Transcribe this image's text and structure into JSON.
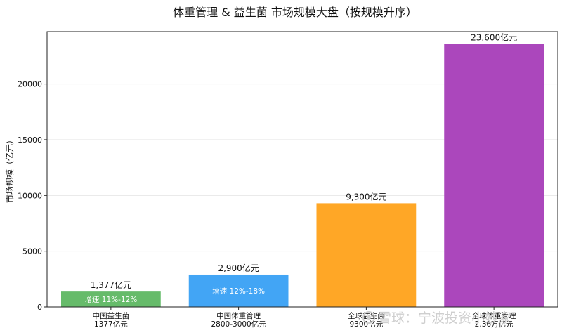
{
  "chart_data": {
    "type": "bar",
    "title": "体重管理 & 益生菌 市场规模大盘（按规模升序）",
    "ylabel": "市场规模（亿元）",
    "ylim": [
      0,
      24700
    ],
    "yticks": [
      0,
      5000,
      10000,
      15000,
      20000
    ],
    "grid": true,
    "categories": [
      [
        "中国益生菌",
        "1377亿元"
      ],
      [
        "中国体重管理",
        "2800-3000亿元"
      ],
      [
        "全球益生菌",
        "9300亿元"
      ],
      [
        "全球体重管理",
        "2.36万亿元"
      ]
    ],
    "values": [
      1377,
      2900,
      9300,
      23600
    ],
    "value_labels": [
      "1,377亿元",
      "2,900亿元",
      "9,300亿元",
      "23,600亿元"
    ],
    "inbar_labels": [
      "增速 11%-12%",
      "增速 12%-18%",
      "",
      ""
    ],
    "colors": [
      "#66bb6a",
      "#42a5f5",
      "#ffa726",
      "#ab47bc"
    ]
  },
  "watermark": "雪球：宁波投资小妙家"
}
